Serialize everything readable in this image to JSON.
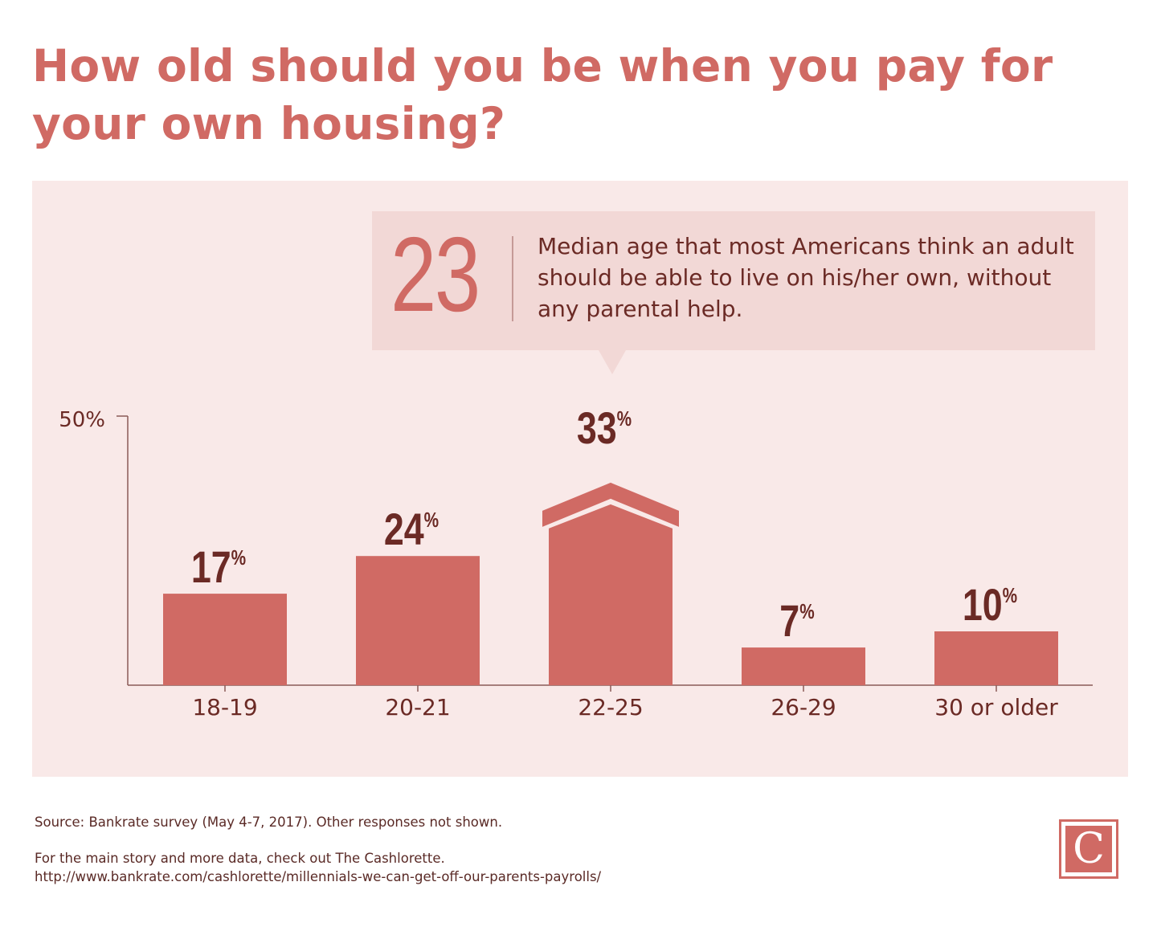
{
  "title": "How old should you be when you pay for your own housing?",
  "callout": {
    "number": "23",
    "text": "Median age that most Americans think an adult should be able to live on his/her own, without any parental help."
  },
  "chart_data": {
    "type": "bar",
    "categories": [
      "18-19",
      "20-21",
      "22-25",
      "26-29",
      "30 or older"
    ],
    "values": [
      17,
      24,
      33,
      7,
      10
    ],
    "value_suffix": "%",
    "ylim": [
      0,
      50
    ],
    "y_tick_label": "50%",
    "highlight_category": "22-25",
    "colors": {
      "bar": "#d06a64",
      "label": "#6b2a25",
      "axis": "#8a5a57",
      "panel": "#f9e9e8"
    }
  },
  "footer": {
    "source": "Source: Bankrate survey (May 4-7, 2017). Other responses not shown.",
    "note": "For the main story and more data, check out The Cashlorette.",
    "url": "http://www.bankrate.com/cashlorette/millennials-we-can-get-off-our-parents-payrolls/"
  },
  "logo": {
    "letter": "C"
  }
}
